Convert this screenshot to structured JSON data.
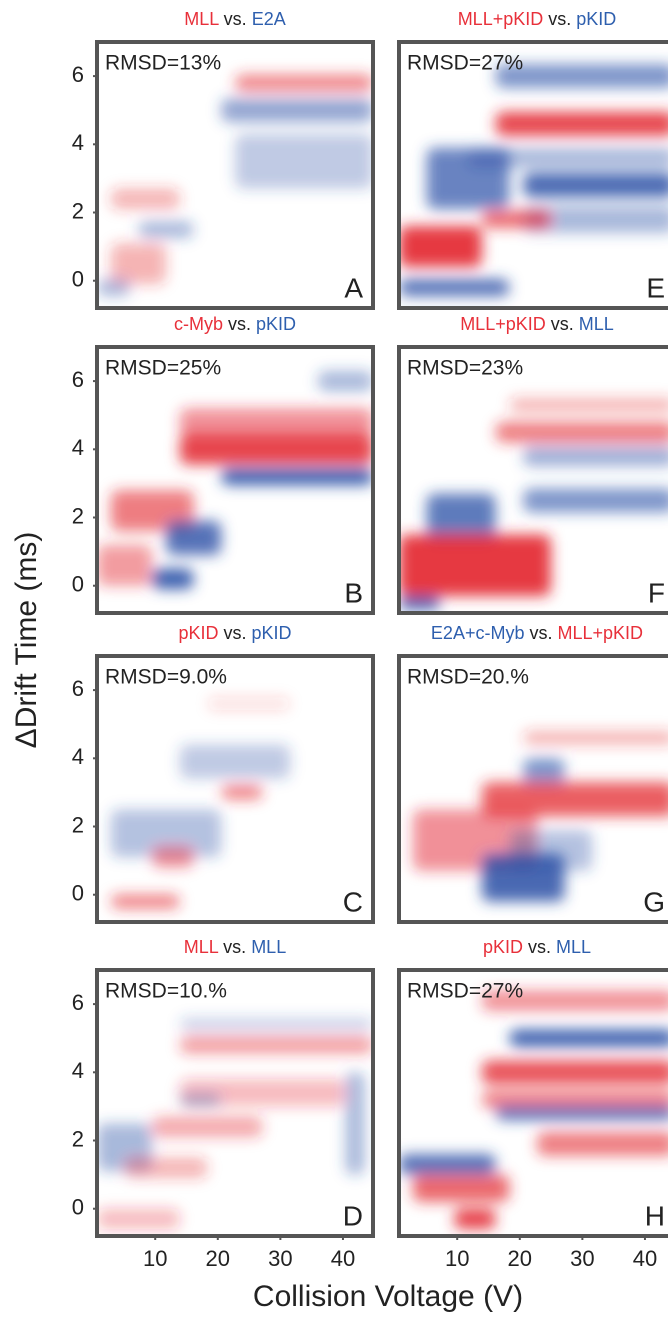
{
  "figure": {
    "y_label": "ΔDrift Time (ms)",
    "x_label": "Collision Voltage (V)",
    "ylim": [
      -0.8,
      7
    ],
    "yticks": [
      0,
      2,
      4,
      6
    ],
    "xlim": [
      0.7,
      44.8
    ],
    "xticks": [
      10,
      20,
      30,
      40
    ],
    "panels": [
      {
        "letter": "A",
        "rmsd": "RMSD=13%",
        "title": {
          "first": "MLL",
          "first_color": "#e8303a",
          "sep": "vs.",
          "second": "E2A",
          "second_color": "#2e5fae"
        }
      },
      {
        "letter": "E",
        "rmsd": "RMSD=27%",
        "title": {
          "first": "MLL+pKID",
          "first_color": "#e8303a",
          "sep": "vs.",
          "second": "pKID",
          "second_color": "#2e5fae"
        }
      },
      {
        "letter": "B",
        "rmsd": "RMSD=25%",
        "title": {
          "first": "c-Myb",
          "first_color": "#e8303a",
          "sep": "vs.",
          "second": "pKID",
          "second_color": "#2e5fae"
        }
      },
      {
        "letter": "F",
        "rmsd": "RMSD=23%",
        "title": {
          "first": "MLL+pKID",
          "first_color": "#e8303a",
          "sep": "vs.",
          "second": "MLL",
          "second_color": "#2e5fae"
        }
      },
      {
        "letter": "C",
        "rmsd": "RMSD=9.0%",
        "title": {
          "first": "pKID",
          "first_color": "#e8303a",
          "sep": "vs.",
          "second": "pKID",
          "second_color": "#2e5fae"
        }
      },
      {
        "letter": "G",
        "rmsd": "RMSD=20.%",
        "title": {
          "first": "E2A+c-Myb",
          "first_color": "#2e5fae",
          "sep": "vs.",
          "second": "MLL+pKID",
          "second_color": "#e8303a"
        }
      },
      {
        "letter": "D",
        "rmsd": "RMSD=10.%",
        "title": {
          "first": "MLL",
          "first_color": "#e8303a",
          "sep": "vs.",
          "second": "MLL",
          "second_color": "#2e5fae"
        }
      },
      {
        "letter": "H",
        "rmsd": "RMSD=27%",
        "title": {
          "first": "pKID",
          "first_color": "#e8303a",
          "sep": "vs.",
          "second": "MLL",
          "second_color": "#2e5fae"
        }
      }
    ]
  }
}
